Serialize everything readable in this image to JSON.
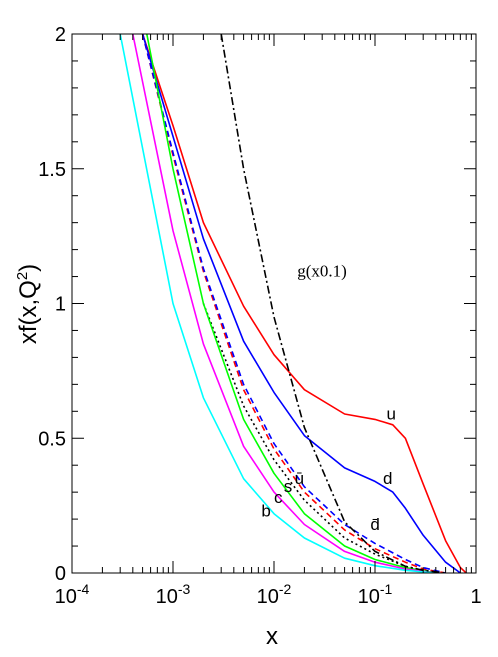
{
  "chart_data": {
    "type": "line",
    "title": "",
    "xlabel": "x",
    "ylabel": "xf(x,Q",
    "ylabel_sup": "2",
    "ylabel_close": ")",
    "xscale": "log",
    "xlim": [
      0.0001,
      1
    ],
    "ylim": [
      0,
      2
    ],
    "grid": false,
    "legend": "none",
    "x_ticks": [
      {
        "base": "10",
        "exp": "-4"
      },
      {
        "base": "10",
        "exp": "-3"
      },
      {
        "base": "10",
        "exp": "-2"
      },
      {
        "base": "10",
        "exp": "-1"
      },
      {
        "base": "1",
        "exp": ""
      }
    ],
    "y_ticks": [
      "0",
      "0.5",
      "1",
      "1.5",
      "2"
    ],
    "series": [
      {
        "name": "u",
        "color": "#ff0000",
        "style": "solid",
        "points": [
          [
            0.0005,
            2.0
          ],
          [
            0.001,
            1.66
          ],
          [
            0.002,
            1.3
          ],
          [
            0.005,
            0.99
          ],
          [
            0.01,
            0.81
          ],
          [
            0.02,
            0.68
          ],
          [
            0.05,
            0.59
          ],
          [
            0.1,
            0.57
          ],
          [
            0.15,
            0.55
          ],
          [
            0.2,
            0.5
          ],
          [
            0.3,
            0.33
          ],
          [
            0.5,
            0.12
          ],
          [
            0.7,
            0.02
          ],
          [
            0.8,
            0.0
          ]
        ]
      },
      {
        "name": "d",
        "color": "#0000ff",
        "style": "solid",
        "points": [
          [
            0.0005,
            2.0
          ],
          [
            0.001,
            1.62
          ],
          [
            0.002,
            1.24
          ],
          [
            0.005,
            0.86
          ],
          [
            0.01,
            0.67
          ],
          [
            0.02,
            0.51
          ],
          [
            0.05,
            0.39
          ],
          [
            0.1,
            0.34
          ],
          [
            0.15,
            0.3
          ],
          [
            0.2,
            0.24
          ],
          [
            0.3,
            0.14
          ],
          [
            0.5,
            0.04
          ],
          [
            0.7,
            0.0
          ]
        ]
      },
      {
        "name": "ū",
        "color": "#ff0000",
        "style": "dashed",
        "points": [
          [
            0.0005,
            2.0
          ],
          [
            0.001,
            1.55
          ],
          [
            0.002,
            1.12
          ],
          [
            0.005,
            0.68
          ],
          [
            0.01,
            0.46
          ],
          [
            0.02,
            0.3
          ],
          [
            0.05,
            0.16
          ],
          [
            0.1,
            0.09
          ],
          [
            0.2,
            0.04
          ],
          [
            0.3,
            0.015
          ],
          [
            0.5,
            0.0
          ]
        ]
      },
      {
        "name": "d̄",
        "color": "#0000ff",
        "style": "dashed",
        "points": [
          [
            0.0005,
            2.0
          ],
          [
            0.001,
            1.56
          ],
          [
            0.002,
            1.13
          ],
          [
            0.005,
            0.7
          ],
          [
            0.01,
            0.48
          ],
          [
            0.02,
            0.32
          ],
          [
            0.05,
            0.18
          ],
          [
            0.1,
            0.11
          ],
          [
            0.2,
            0.05
          ],
          [
            0.3,
            0.02
          ],
          [
            0.5,
            0.0
          ]
        ]
      },
      {
        "name": "s",
        "color": "#000000",
        "style": "dotted",
        "points": [
          [
            0.002,
            1.0
          ],
          [
            0.005,
            0.62
          ],
          [
            0.01,
            0.42
          ],
          [
            0.02,
            0.27
          ],
          [
            0.05,
            0.13
          ],
          [
            0.1,
            0.07
          ],
          [
            0.2,
            0.025
          ],
          [
            0.4,
            0.0
          ]
        ]
      },
      {
        "name": "c",
        "color": "#00ff00",
        "style": "solid",
        "points": [
          [
            0.00055,
            2.0
          ],
          [
            0.001,
            1.5
          ],
          [
            0.002,
            1.0
          ],
          [
            0.005,
            0.57
          ],
          [
            0.01,
            0.37
          ],
          [
            0.02,
            0.22
          ],
          [
            0.05,
            0.1
          ],
          [
            0.1,
            0.05
          ],
          [
            0.2,
            0.02
          ],
          [
            0.4,
            0.0
          ]
        ]
      },
      {
        "name": "b",
        "color": "#ff00ff",
        "style": "solid",
        "points": [
          [
            0.0004,
            2.0
          ],
          [
            0.001,
            1.27
          ],
          [
            0.002,
            0.85
          ],
          [
            0.005,
            0.47
          ],
          [
            0.01,
            0.3
          ],
          [
            0.02,
            0.18
          ],
          [
            0.05,
            0.08
          ],
          [
            0.1,
            0.04
          ],
          [
            0.2,
            0.015
          ],
          [
            0.4,
            0.0
          ]
        ]
      },
      {
        "name": "",
        "color": "#00ffff",
        "style": "solid",
        "points": [
          [
            0.0003,
            2.0
          ],
          [
            0.001,
            1.0
          ],
          [
            0.002,
            0.65
          ],
          [
            0.005,
            0.35
          ],
          [
            0.01,
            0.22
          ],
          [
            0.02,
            0.13
          ],
          [
            0.05,
            0.055
          ],
          [
            0.1,
            0.027
          ],
          [
            0.2,
            0.01
          ],
          [
            0.4,
            0.0
          ]
        ]
      },
      {
        "name": "g(x0.1)",
        "color": "#000000",
        "style": "dashdot",
        "points": [
          [
            0.003,
            2.0
          ],
          [
            0.005,
            1.5
          ],
          [
            0.01,
            0.95
          ],
          [
            0.02,
            0.54
          ],
          [
            0.05,
            0.19
          ],
          [
            0.1,
            0.08
          ],
          [
            0.2,
            0.025
          ],
          [
            0.3,
            0.01
          ],
          [
            0.5,
            0.0
          ]
        ]
      }
    ],
    "annotations": [
      {
        "text": "u",
        "x": 0.13,
        "y": 0.57
      },
      {
        "text": "d",
        "x": 0.12,
        "y": 0.33
      },
      {
        "text": "ū",
        "x": 0.016,
        "y": 0.33
      },
      {
        "text": "s",
        "x": 0.0125,
        "y": 0.3
      },
      {
        "text": "c",
        "x": 0.01,
        "y": 0.26
      },
      {
        "text": "b",
        "x": 0.0075,
        "y": 0.21
      },
      {
        "text": "d̄",
        "x": 0.09,
        "y": 0.16
      },
      {
        "text": "g(x0.1)",
        "x": 0.017,
        "y": 1.1
      }
    ]
  }
}
